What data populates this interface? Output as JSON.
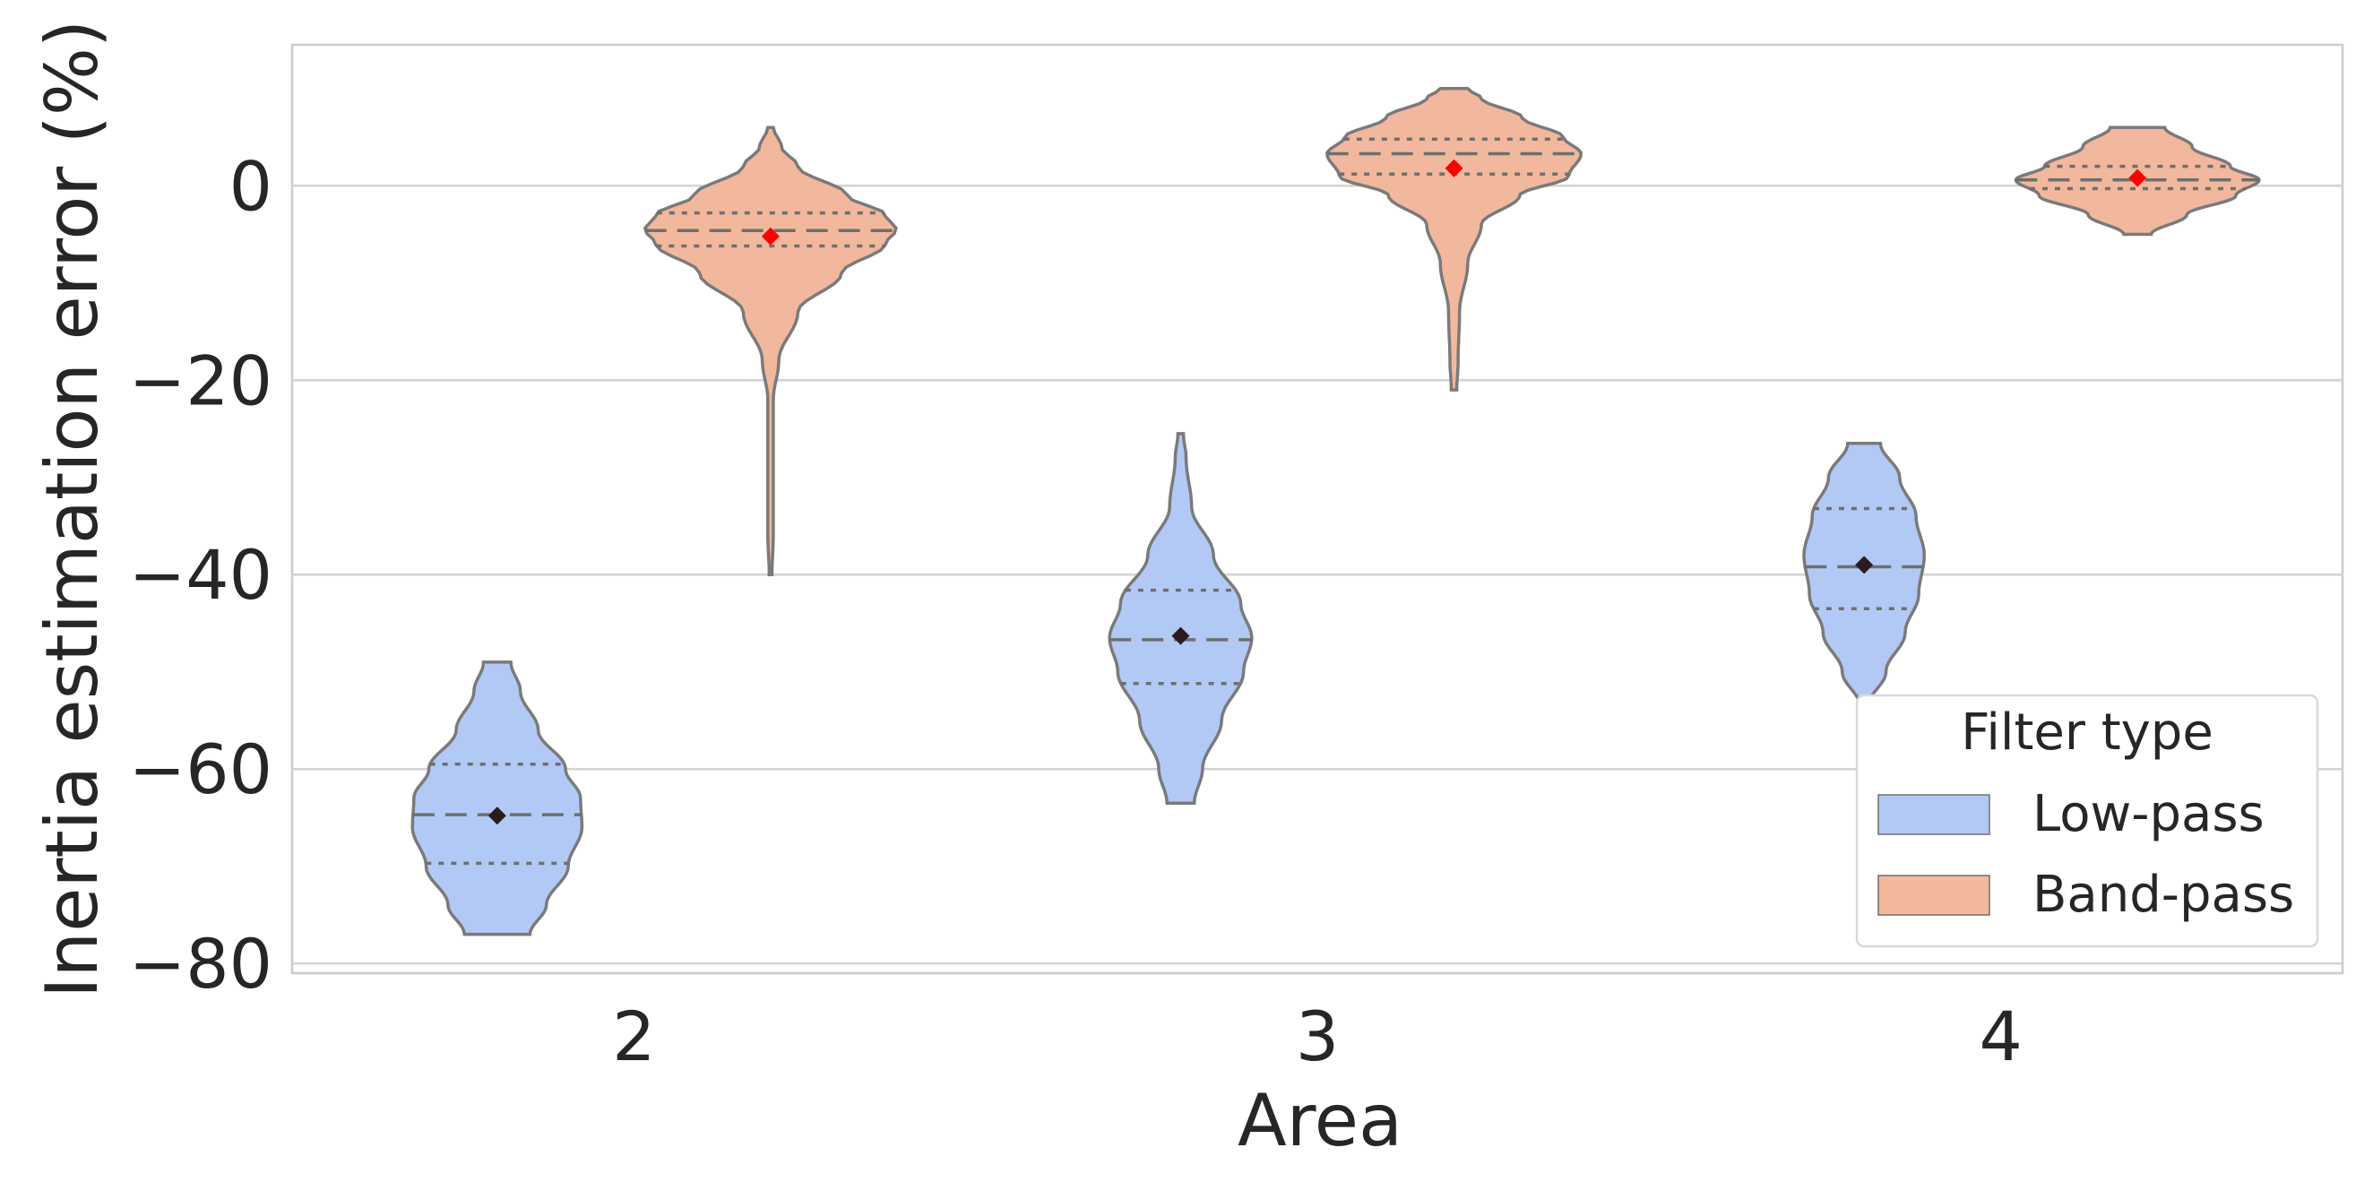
{
  "chart_data": {
    "type": "violin",
    "xlabel": "Area",
    "ylabel": "Inertia estimation error (%)",
    "categories": [
      "2",
      "3",
      "4"
    ],
    "ylim": [
      -81,
      14.5
    ],
    "yticks": [
      0,
      -20,
      -40,
      -60,
      -80
    ],
    "ytick_labels": [
      "0",
      "−20",
      "−40",
      "−60",
      "−80"
    ],
    "grid": "horizontal",
    "legend": {
      "title": "Filter type",
      "placement": "lower-right",
      "entries": [
        "Low-pass",
        "Band-pass"
      ]
    },
    "series": [
      {
        "name": "Low-pass",
        "color": "#b3c9f5",
        "marker_color": "#2b1b1e",
        "violins": [
          {
            "category": "2",
            "min": -77,
            "max": -49,
            "q1": -69.7,
            "median": -64.7,
            "q3": -59.5,
            "mean": -64.8,
            "profile": [
              [
                -77,
                0.24
              ],
              [
                -74,
                0.36
              ],
              [
                -70,
                0.52
              ],
              [
                -66,
                0.62
              ],
              [
                -63,
                0.61
              ],
              [
                -60,
                0.5
              ],
              [
                -56,
                0.3
              ],
              [
                -52,
                0.17
              ],
              [
                -49,
                0.1
              ]
            ]
          },
          {
            "category": "3",
            "min": -63.5,
            "max": -25.5,
            "q1": -51.2,
            "median": -46.7,
            "q3": -41.6,
            "mean": -46.3,
            "profile": [
              [
                -63.5,
                0.1
              ],
              [
                -60,
                0.16
              ],
              [
                -55,
                0.3
              ],
              [
                -50,
                0.46
              ],
              [
                -46.5,
                0.52
              ],
              [
                -43,
                0.44
              ],
              [
                -38,
                0.24
              ],
              [
                -33,
                0.08
              ],
              [
                -28,
                0.04
              ],
              [
                -25.5,
                0.02
              ]
            ]
          },
          {
            "category": "4",
            "min": -53.5,
            "max": -26.5,
            "q1": -43.5,
            "median": -39.2,
            "q3": -33.2,
            "mean": -39.0,
            "profile": [
              [
                -53.5,
                0.03
              ],
              [
                -50,
                0.16
              ],
              [
                -46,
                0.3
              ],
              [
                -42,
                0.4
              ],
              [
                -38,
                0.44
              ],
              [
                -34,
                0.38
              ],
              [
                -30,
                0.26
              ],
              [
                -26.5,
                0.12
              ]
            ]
          }
        ]
      },
      {
        "name": "Band-pass",
        "color": "#f2b89d",
        "marker_color": "#ff0000",
        "violins": [
          {
            "category": "2",
            "min": -40,
            "max": 6,
            "q1": -6.2,
            "median": -4.6,
            "q3": -2.8,
            "mean": -5.2,
            "profile": [
              [
                -40,
                0.01
              ],
              [
                -36,
                0.02
              ],
              [
                -22,
                0.02
              ],
              [
                -18,
                0.06
              ],
              [
                -13,
                0.2
              ],
              [
                -9,
                0.52
              ],
              [
                -6,
                0.84
              ],
              [
                -4.5,
                0.92
              ],
              [
                -3,
                0.84
              ],
              [
                -1,
                0.56
              ],
              [
                2,
                0.2
              ],
              [
                4,
                0.08
              ],
              [
                6,
                0.02
              ]
            ]
          },
          {
            "category": "3",
            "min": -21,
            "max": 10,
            "q1": 1.2,
            "median": 3.3,
            "q3": 4.8,
            "mean": 1.8,
            "profile": [
              [
                -21,
                0.02
              ],
              [
                -18,
                0.03
              ],
              [
                -13,
                0.04
              ],
              [
                -8,
                0.1
              ],
              [
                -4,
                0.2
              ],
              [
                -1,
                0.48
              ],
              [
                1,
                0.84
              ],
              [
                3.3,
                0.93
              ],
              [
                5,
                0.8
              ],
              [
                7,
                0.5
              ],
              [
                9,
                0.2
              ],
              [
                10,
                0.1
              ]
            ]
          },
          {
            "category": "4",
            "min": -5,
            "max": 6,
            "q1": -0.3,
            "median": 0.6,
            "q3": 2.0,
            "mean": 0.8,
            "profile": [
              [
                -5,
                0.1
              ],
              [
                -3,
                0.36
              ],
              [
                -1,
                0.72
              ],
              [
                0.6,
                0.89
              ],
              [
                2,
                0.68
              ],
              [
                4,
                0.4
              ],
              [
                6,
                0.2
              ]
            ]
          }
        ]
      }
    ]
  }
}
